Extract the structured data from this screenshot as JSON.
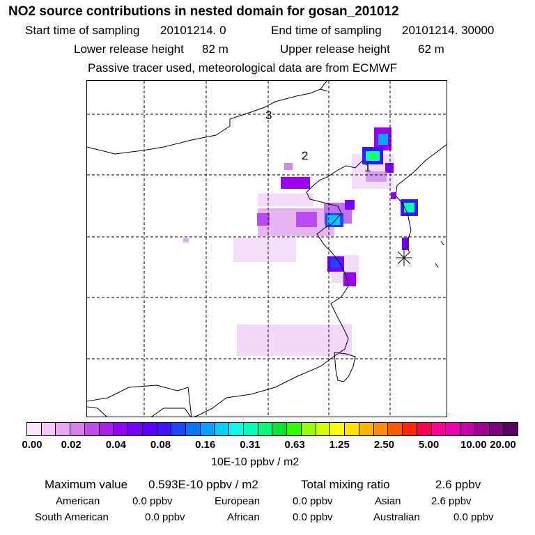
{
  "title": "NO2 source contributions in nested domain for gosan_201012",
  "header": {
    "start_label": "Start time of sampling",
    "start_value": "20101214.    0",
    "end_label": "End time of sampling",
    "end_value": "20101214. 30000",
    "lower_label": "Lower release height",
    "lower_value": "82 m",
    "upper_label": "Upper release height",
    "upper_value": "62 m",
    "note": "Passive tracer used, meteorological data are from ECMWF"
  },
  "map": {
    "labels": [
      "1",
      "2",
      "3"
    ],
    "receptor_marker": "asterisk"
  },
  "legend": {
    "colors": [
      "#ffe6ff",
      "#f5c8f8",
      "#e8a8f2",
      "#d680ec",
      "#c24ce8",
      "#ad1fe8",
      "#9400ff",
      "#7800ff",
      "#5a00ff",
      "#3c14ff",
      "#1e46ff",
      "#0a73ff",
      "#0aa0ff",
      "#00d2ff",
      "#00ffe6",
      "#00ffb4",
      "#00ff78",
      "#00e632",
      "#32ff00",
      "#96ff00",
      "#d2ff00",
      "#ffff00",
      "#ffe100",
      "#ffb400",
      "#ff8c00",
      "#ff5a00",
      "#ff2800",
      "#ff0050",
      "#ff0096",
      "#eb00b4",
      "#c800aa",
      "#a00096",
      "#7d0087",
      "#5a0064"
    ],
    "ticks": [
      "0.00",
      "0.02",
      "0.04",
      "0.08",
      "0.16",
      "0.31",
      "0.63",
      "1.25",
      "2.50",
      "5.00",
      "10.00",
      "20.00"
    ],
    "unit": "10E-10 ppbv / m2"
  },
  "stats": {
    "max_label": "Maximum value",
    "max_value": "0.593E-10 ppbv / m2",
    "total_label": "Total mixing ratio",
    "total_value": "2.6 ppbv",
    "regions": [
      {
        "name": "American",
        "value": "0.0 ppbv"
      },
      {
        "name": "European",
        "value": "0.0 ppbv"
      },
      {
        "name": "Asian",
        "value": "2.6 ppbv"
      },
      {
        "name": "South American",
        "value": "0.0 ppbv"
      },
      {
        "name": "African",
        "value": "0.0 ppbv"
      },
      {
        "name": "Australian",
        "value": "0.0 ppbv"
      }
    ]
  }
}
